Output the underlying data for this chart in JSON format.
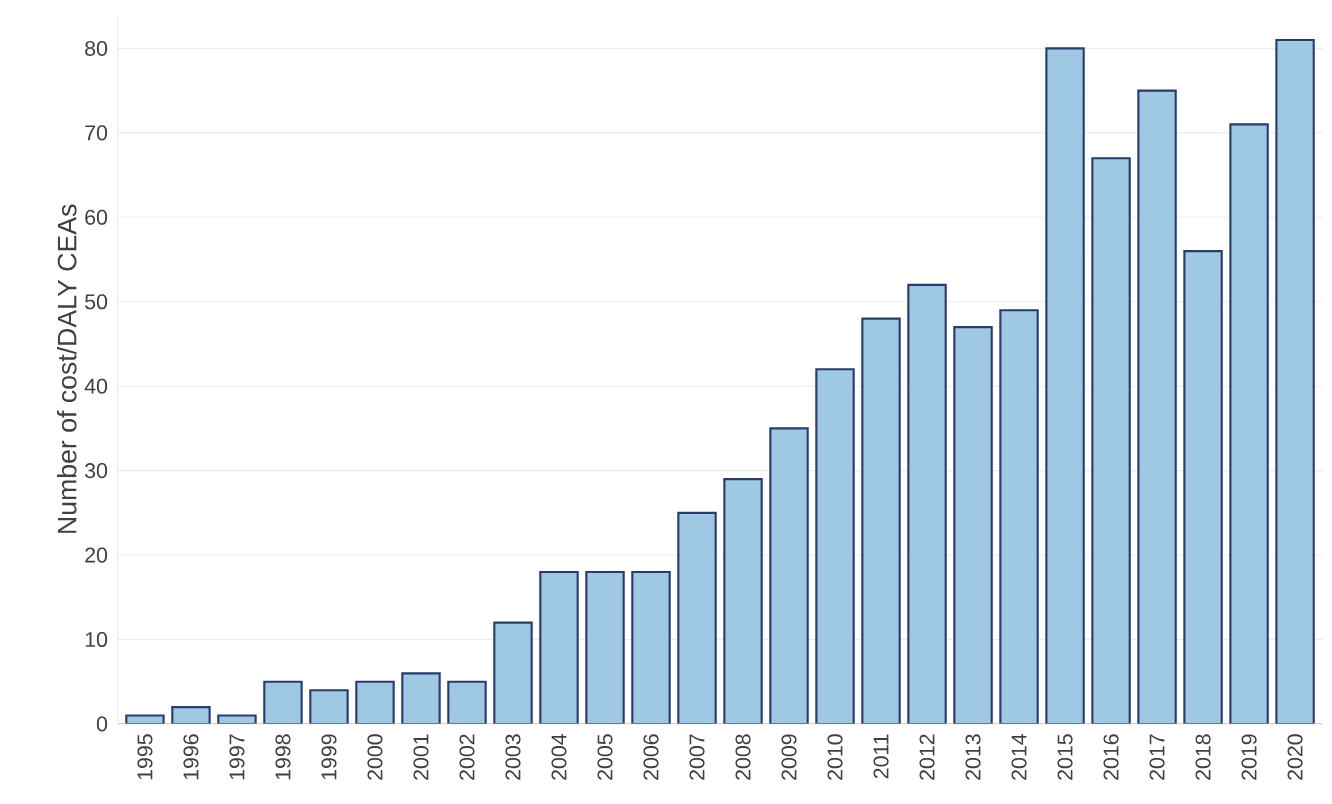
{
  "chart_data": {
    "type": "bar",
    "ylabel": "Number of cost/DALY CEAs",
    "categories": [
      "1995",
      "1996",
      "1997",
      "1998",
      "1999",
      "2000",
      "2001",
      "2002",
      "2003",
      "2004",
      "2005",
      "2006",
      "2007",
      "2008",
      "2009",
      "2010",
      "2011",
      "2012",
      "2013",
      "2014",
      "2015",
      "2016",
      "2017",
      "2018",
      "2019",
      "2020"
    ],
    "values": [
      1,
      2,
      1,
      5,
      4,
      5,
      6,
      5,
      12,
      18,
      18,
      18,
      25,
      29,
      35,
      42,
      48,
      52,
      47,
      49,
      80,
      67,
      75,
      56,
      71,
      81
    ],
    "color": "#9fc8e2",
    "ylim": [
      0,
      84
    ],
    "yticks": [
      0,
      10,
      20,
      30,
      40,
      50,
      60,
      70,
      80
    ],
    "grid": "y"
  }
}
